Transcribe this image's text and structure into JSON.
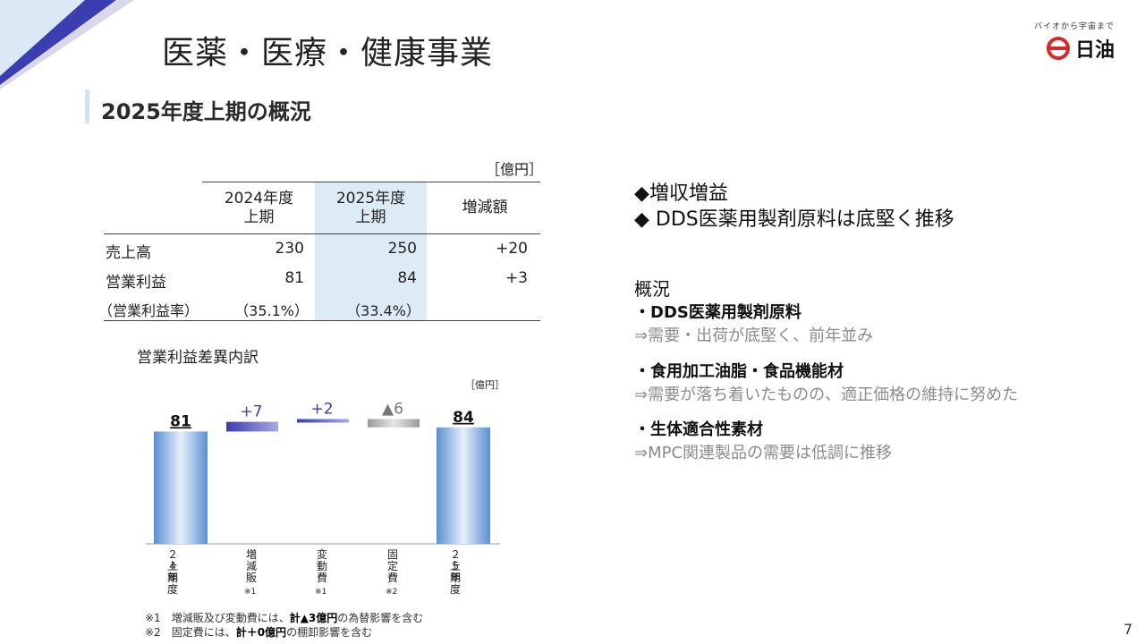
{
  "header": {
    "title": "医薬・医療・健康事業",
    "logo_tagline": "バイオから宇宙まで",
    "logo_name": "日油"
  },
  "section": {
    "title": "2025年度上期の概況"
  },
  "table": {
    "unit": "［億円］",
    "columns": [
      "2024年度\n上期",
      "2025年度\n上期",
      "増減額"
    ],
    "rows": [
      {
        "label": "売上高",
        "v2024": "230",
        "v2025": "250",
        "diff": "+20"
      },
      {
        "label": "営業利益",
        "v2024": "81",
        "v2025": "84",
        "diff": "+3"
      },
      {
        "label": "（営業利益率）",
        "v2024": "（35.1%）",
        "v2025": "（33.4%）",
        "diff": ""
      }
    ]
  },
  "waterfall": {
    "title": "営業利益差異内訳",
    "unit": "［億円］",
    "labels": [
      "81",
      "+7",
      "+2",
      "▲6",
      "84"
    ],
    "categories": [
      {
        "line1": "２４年度",
        "line2": "上期",
        "mark": ""
      },
      {
        "line1": "増減販",
        "line2": "",
        "mark": "※1"
      },
      {
        "line1": "変動費",
        "line2": "",
        "mark": "※1"
      },
      {
        "line1": "固定費",
        "line2": "",
        "mark": "※2"
      },
      {
        "line1": "２５年度",
        "line2": "上期",
        "mark": ""
      }
    ],
    "notes": [
      {
        "pre": "※1　増減販及び変動費には、",
        "bold": "計▲3億円",
        "post": "の為替影響を含む"
      },
      {
        "pre": "※2　固定費には、",
        "bold": "計＋0億円",
        "post": "の棚卸影響を含む"
      }
    ]
  },
  "chart_data": {
    "type": "bar",
    "categories": [
      "２４年度上期",
      "増減販",
      "変動費",
      "固定費",
      "２５年度上期"
    ],
    "values": [
      81,
      7,
      2,
      -6,
      84
    ],
    "title": "営業利益差異内訳",
    "ylabel": "［億円］"
  },
  "summary": {
    "bullets": [
      "◆増収増益",
      "◆ DDS医薬用製剤原料は底堅く推移"
    ],
    "overview_heading": "概況",
    "items": [
      {
        "head": "・DDS医薬用製剤原料",
        "detail": "⇒需要・出荷が底堅く、前年並み"
      },
      {
        "head": "・食用加工油脂・食品機能材",
        "detail": "⇒需要が落ち着いたものの、適正価格の維持に努めた"
      },
      {
        "head": "・生体適合性素材",
        "detail": "⇒MPC関連製品の需要は低調に推移"
      }
    ]
  },
  "colors": {
    "accent_light": "#dcebf6",
    "bar_blue": "#5b8fd1",
    "bar_navy": "#3b3ea8",
    "bar_gray": "#9a9a9a"
  },
  "page_number": "7"
}
